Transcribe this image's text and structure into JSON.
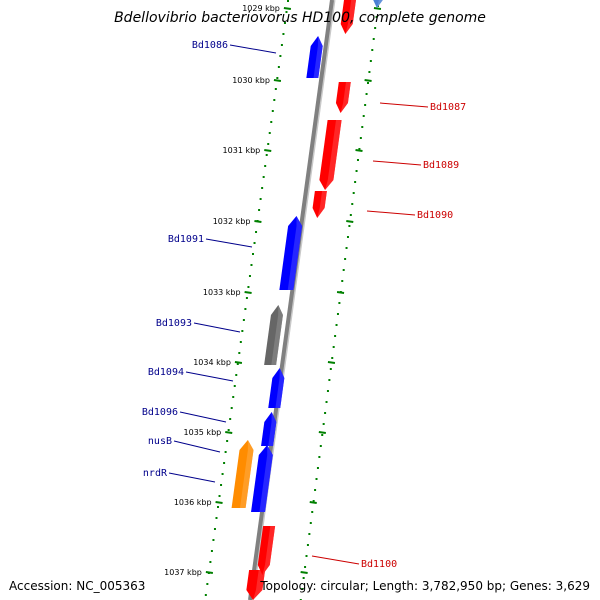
{
  "title": "Bdellovibrio bacteriovorus HD100, complete genome",
  "accession": "Accession: NC_005363",
  "topology": "Topology: circular; Length: 3,782,950 bp; Genes: 3,629",
  "ticks": [
    "1029 kbp",
    "1030 kbp",
    "1031 kbp",
    "1032 kbp",
    "1033 kbp",
    "1034 kbp",
    "1035 kbp",
    "1036 kbp",
    "1037 kbp"
  ],
  "genes": [
    {
      "label": "Bd1086",
      "strand": "forward",
      "color": "#0000ff"
    },
    {
      "label": "Bd1087",
      "strand": "reverse",
      "color": "#ff0000"
    },
    {
      "label": "Bd1089",
      "strand": "reverse",
      "color": "#ff0000"
    },
    {
      "label": "Bd1090",
      "strand": "reverse",
      "color": "#ff0000"
    },
    {
      "label": "Bd1091",
      "strand": "forward",
      "color": "#0000ff"
    },
    {
      "label": "Bd1093",
      "strand": "forward",
      "color": "#666666"
    },
    {
      "label": "Bd1094",
      "strand": "forward",
      "color": "#0000ff"
    },
    {
      "label": "Bd1096",
      "strand": "forward",
      "color": "#0000ff"
    },
    {
      "label": "nusB",
      "strand": "forward",
      "color": "#ff8c00"
    },
    {
      "label": "nrdR",
      "strand": "forward",
      "color": "#0000ff"
    },
    {
      "label": "Bd1100",
      "strand": "reverse",
      "color": "#ff0000"
    }
  ],
  "colors": {
    "forward_label": "#00008b",
    "reverse_label": "#cc0000",
    "backbone": "#808080",
    "ticks": "#008000"
  }
}
